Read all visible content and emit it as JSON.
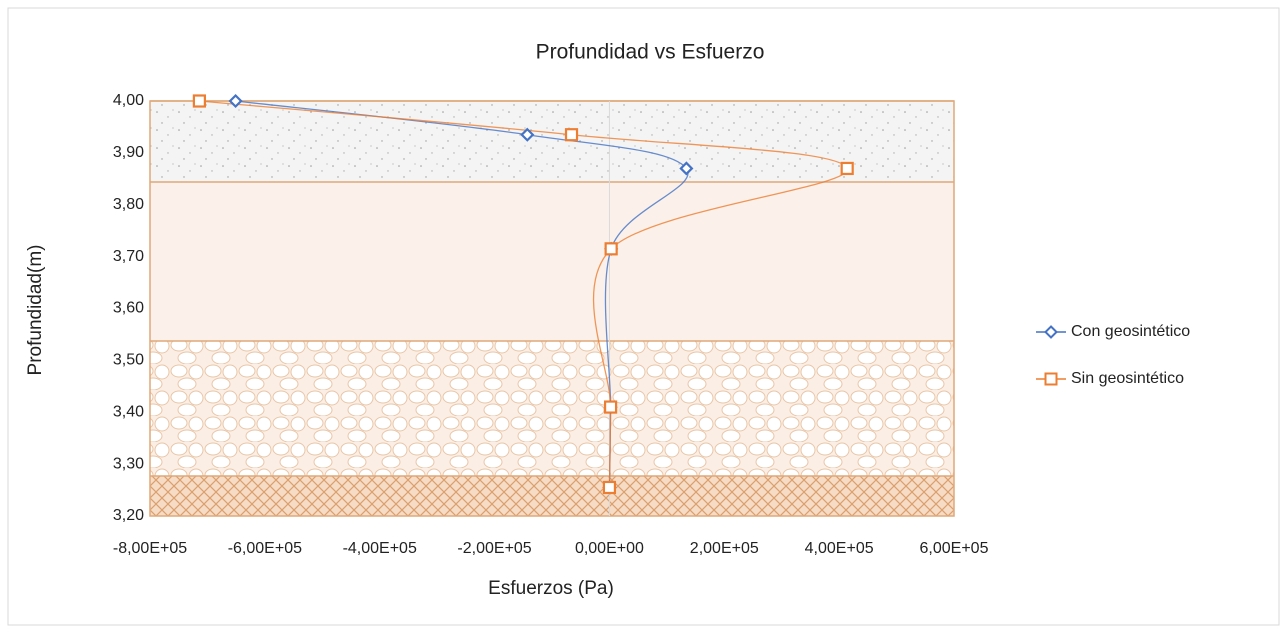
{
  "chart_data": {
    "type": "scatter",
    "title": "Profundidad vs Esfuerzo",
    "x_label": "Esfuerzos (Pa)",
    "y_label": "Profundidad(m)",
    "series": [
      {
        "name": "Con geosintético",
        "color": "#4472c4",
        "marker": "diamond",
        "x": [
          -651000,
          -143000,
          134000,
          3000,
          2000,
          0
        ],
        "values": [
          4.0,
          3.935,
          3.87,
          3.715,
          3.41,
          3.255
        ]
      },
      {
        "name": "Sin geosintético",
        "color": "#ed7d31",
        "marker": "square",
        "x": [
          -714000,
          -66000,
          414000,
          3000,
          2000,
          0
        ],
        "values": [
          4.0,
          3.935,
          3.87,
          3.715,
          3.41,
          3.255
        ]
      }
    ],
    "xlim": [
      -800000,
      600000
    ],
    "xticks": [
      {
        "value": -800000,
        "label": "-8,00E+05"
      },
      {
        "value": -600000,
        "label": "-6,00E+05"
      },
      {
        "value": -400000,
        "label": "-4,00E+05"
      },
      {
        "value": -200000,
        "label": "-2,00E+05"
      },
      {
        "value": 0,
        "label": "0,00E+00"
      },
      {
        "value": 200000,
        "label": "2,00E+05"
      },
      {
        "value": 400000,
        "label": "4,00E+05"
      },
      {
        "value": 600000,
        "label": "6,00E+05"
      }
    ],
    "ylim": [
      3.2,
      4.0
    ],
    "yticks": [
      {
        "value": 3.2,
        "label": "3,20"
      },
      {
        "value": 3.3,
        "label": "3,30"
      },
      {
        "value": 3.4,
        "label": "3,40"
      },
      {
        "value": 3.5,
        "label": "3,50"
      },
      {
        "value": 3.6,
        "label": "3,60"
      },
      {
        "value": 3.7,
        "label": "3,70"
      },
      {
        "value": 3.8,
        "label": "3,80"
      },
      {
        "value": 3.9,
        "label": "3,90"
      },
      {
        "value": 4.0,
        "label": "4,00"
      }
    ],
    "legend": "right",
    "smooth": true
  }
}
